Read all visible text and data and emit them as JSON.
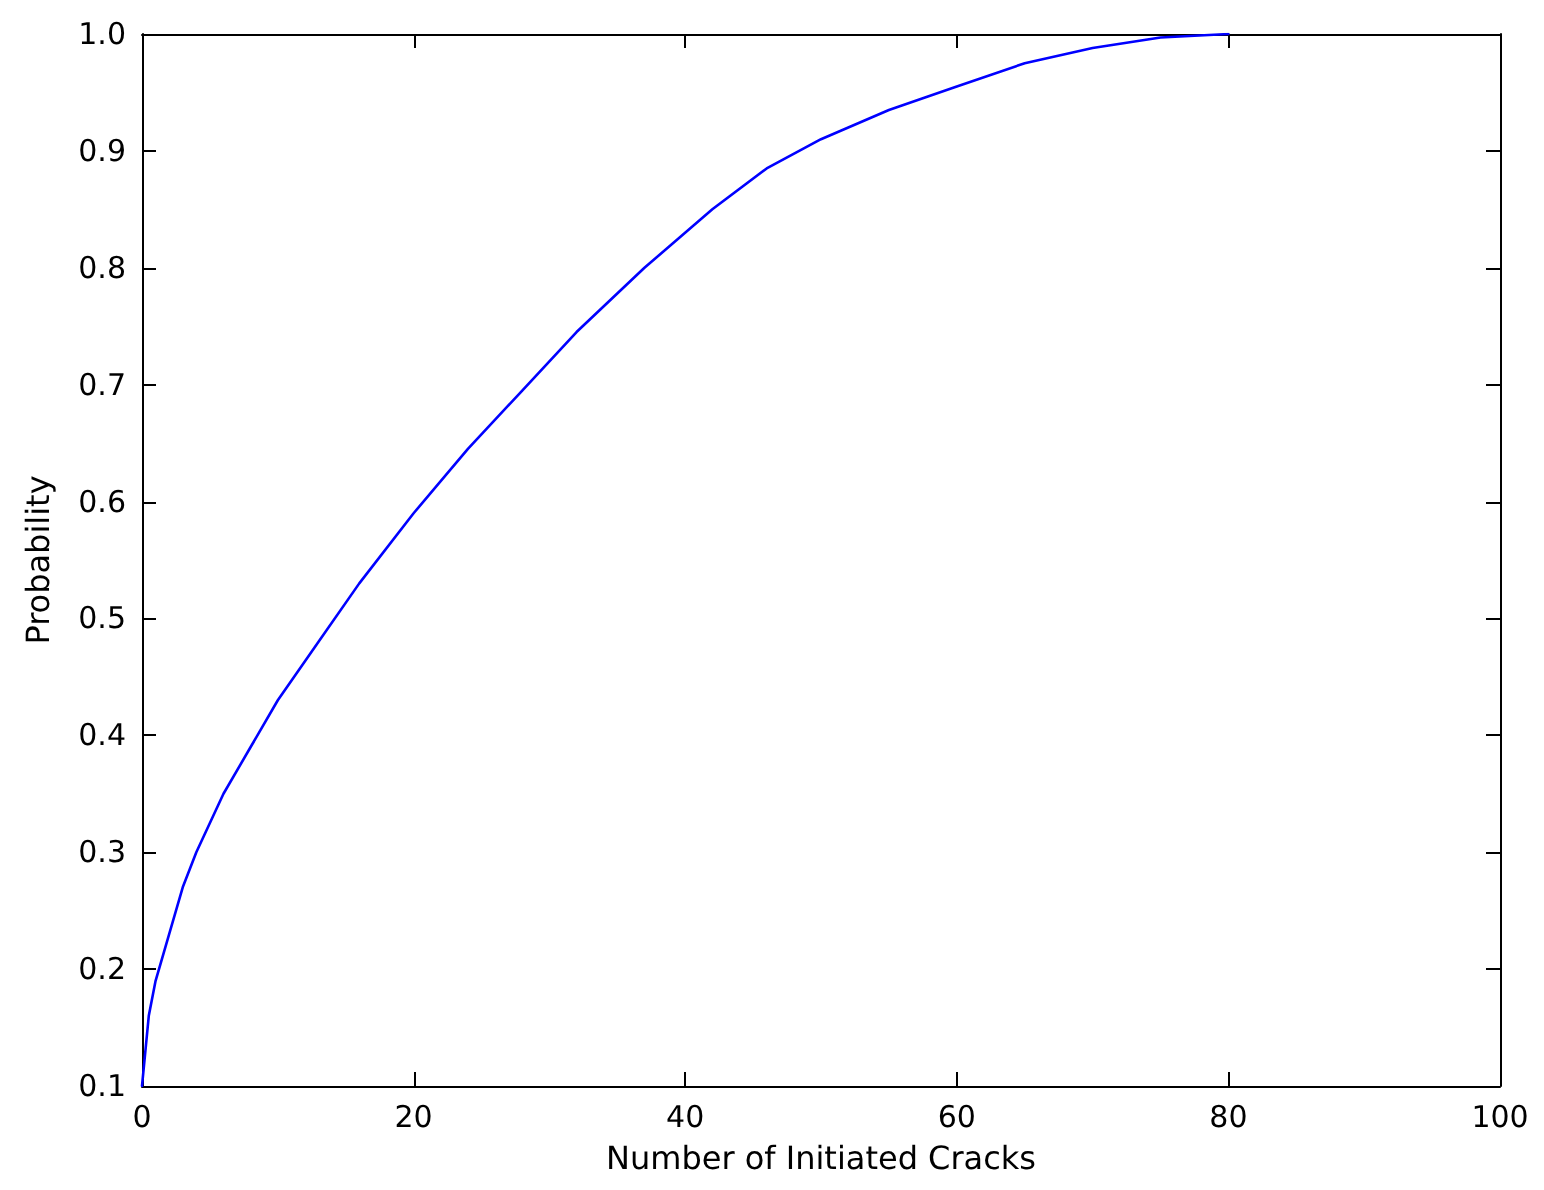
{
  "chart_data": {
    "type": "line",
    "xlabel": "Number of Initiated Cracks",
    "ylabel": "Probability",
    "x": [
      0,
      0.5,
      1,
      2,
      3,
      4,
      6,
      8,
      10,
      13,
      16,
      20,
      24,
      28,
      32,
      37,
      42,
      46,
      50,
      55,
      60,
      65,
      70,
      75,
      80
    ],
    "series": [
      {
        "color": "#0000ff",
        "values": [
          0.1,
          0.16,
          0.19,
          0.23,
          0.27,
          0.3,
          0.35,
          0.39,
          0.43,
          0.48,
          0.53,
          0.59,
          0.645,
          0.695,
          0.745,
          0.8,
          0.85,
          0.885,
          0.91,
          0.935,
          0.955,
          0.975,
          0.988,
          0.997,
          1.0
        ]
      }
    ],
    "xlim": [
      0,
      100
    ],
    "xticks": [
      0,
      20,
      40,
      60,
      80,
      100
    ],
    "ylim": [
      0.1,
      1.0
    ],
    "yticks": [
      0.1,
      0.2,
      0.3,
      0.4,
      0.5,
      0.6,
      0.7,
      0.8,
      0.9,
      {
        "value": 1,
        "label": "1.0"
      }
    ],
    "grid": false,
    "marker": "none",
    "line_style": "solid"
  }
}
